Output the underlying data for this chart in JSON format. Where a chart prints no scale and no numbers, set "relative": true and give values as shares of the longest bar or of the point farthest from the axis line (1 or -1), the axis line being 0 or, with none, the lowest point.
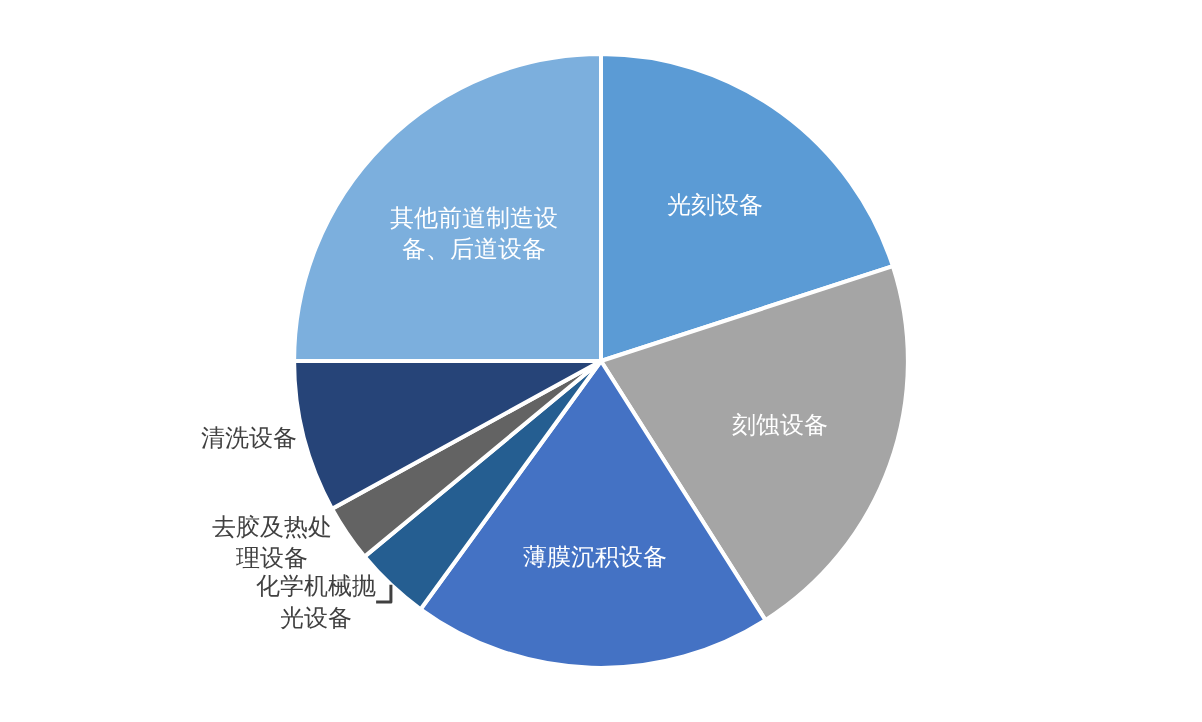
{
  "chart_data": {
    "type": "pie",
    "relative": true,
    "categories": [
      "光刻设备",
      "刻蚀设备",
      "薄膜沉积设备",
      "化学机械抛光设备",
      "去胶及热处理设备",
      "清洗设备",
      "其他前道制造设备、后道设备"
    ],
    "values": [
      20,
      21,
      19,
      4,
      3,
      8,
      25
    ],
    "colors": [
      "#5b9bd5",
      "#a5a5a5",
      "#4472c4",
      "#255e91",
      "#636363",
      "#264478",
      "#7cafdd"
    ],
    "legend": false
  }
}
